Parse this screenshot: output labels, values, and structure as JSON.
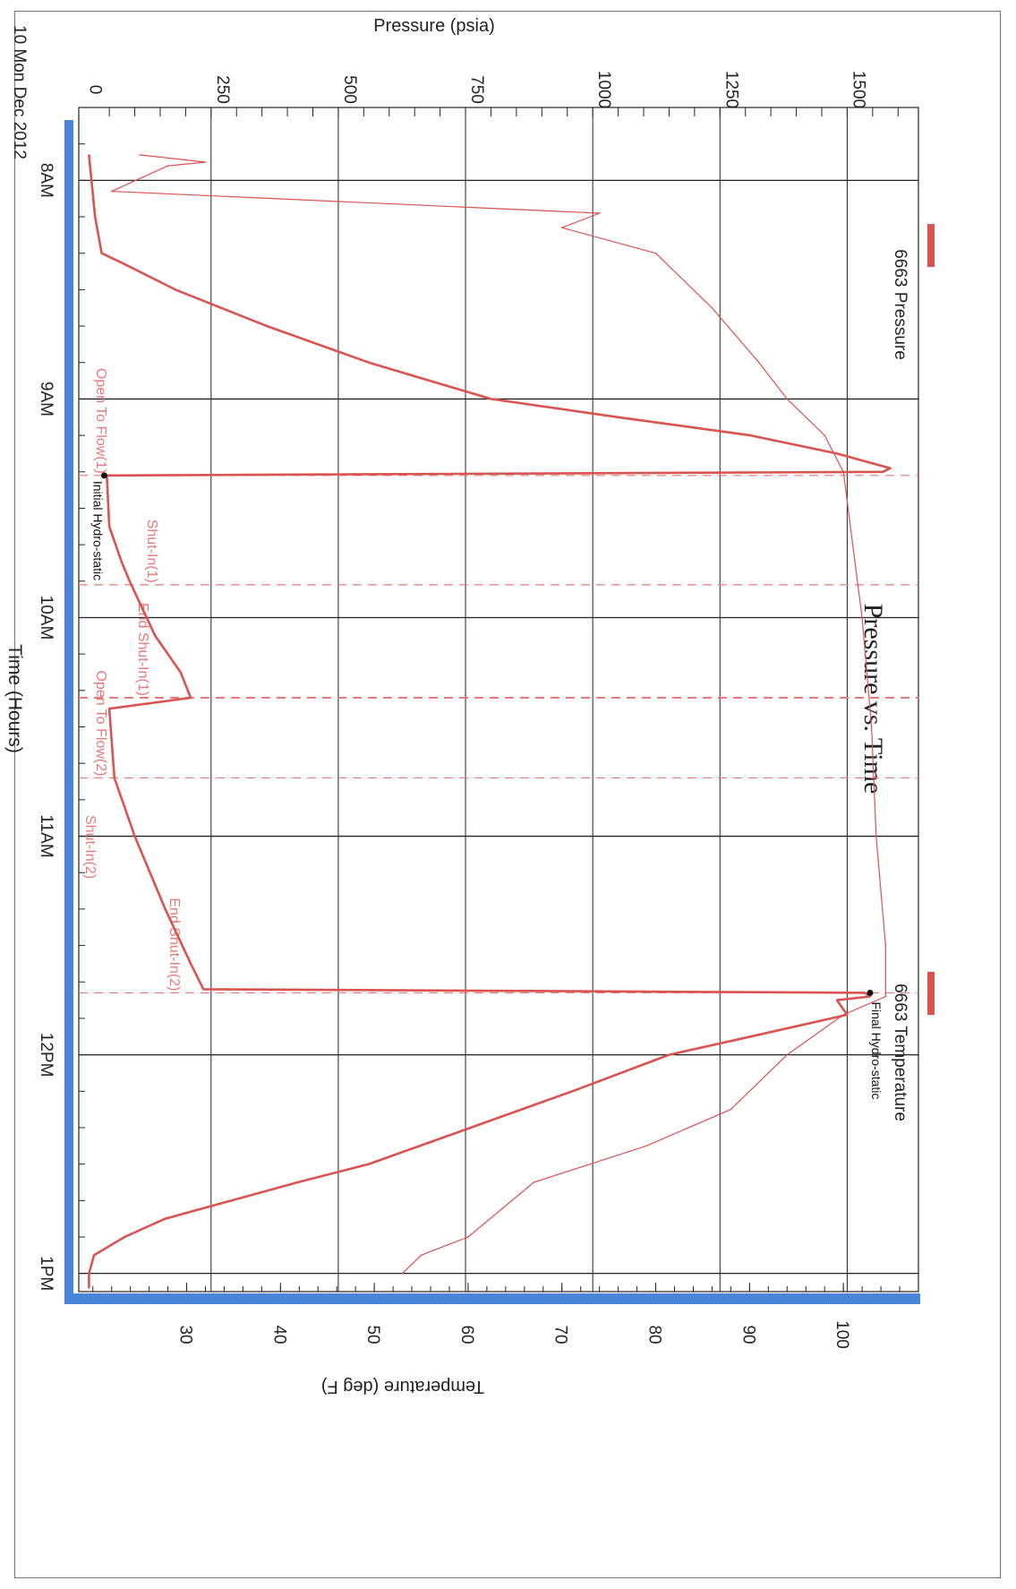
{
  "chart_data": {
    "type": "line",
    "orientation": "rotated 90 degrees clockwise (time runs top to bottom)",
    "title": "Pressure vs. Time",
    "date_label": "10 Mon Dec 2012",
    "xlabel": "Time (Hours)",
    "ylabel_left": "Pressure (psia)",
    "ylabel_right": "Temperature (deg F)",
    "x_ticks": [
      "8AM",
      "9AM",
      "10AM",
      "11AM",
      "12PM",
      "1PM"
    ],
    "x_range": [
      "7:40",
      "13:05"
    ],
    "pressure_ticks": [
      "0",
      "250",
      "500",
      "750",
      "1000",
      "1250",
      "1500"
    ],
    "pressure_range": [
      -10,
      1640
    ],
    "temperature_ticks": [
      "30",
      "40",
      "50",
      "60",
      "70",
      "80",
      "90",
      "100"
    ],
    "temperature_range": [
      18.5,
      108
    ],
    "grid": true,
    "legend": [
      {
        "name": "6663 Pressure",
        "color": "#d9534f"
      },
      {
        "name": "6663 Temperature",
        "color": "#d9534f"
      }
    ],
    "event_lines": [
      {
        "time": "9:21",
        "label": "Open To Flow(1)"
      },
      {
        "time": "9:51",
        "label": "Shut-In(1)"
      },
      {
        "time": "10:22",
        "label": "End Shut-In(1)"
      },
      {
        "time": "10:44",
        "label": "Open To Flow(2)"
      },
      {
        "time": "11:43",
        "label": "End Shut-In(2)"
      }
    ],
    "event_labels_extra": [
      {
        "label": "Shut-In(2)"
      }
    ],
    "point_annotations": [
      {
        "label": "Initial Hydro-static",
        "time": "9:21",
        "pressure": 40
      },
      {
        "label": "Final Hydro-static",
        "time": "11:43",
        "pressure": 1545
      }
    ],
    "series": [
      {
        "name": "6663 Pressure",
        "axis": "pressure",
        "points": [
          [
            "7:53",
            10
          ],
          [
            "8:00",
            15
          ],
          [
            "8:10",
            22
          ],
          [
            "8:20",
            35
          ],
          [
            "8:23",
            80
          ],
          [
            "8:30",
            180
          ],
          [
            "8:40",
            360
          ],
          [
            "8:50",
            560
          ],
          [
            "9:00",
            800
          ],
          [
            "9:05",
            1050
          ],
          [
            "9:10",
            1310
          ],
          [
            "9:15",
            1480
          ],
          [
            "9:19",
            1585
          ],
          [
            "9:20",
            1570
          ],
          [
            "9:21",
            45
          ],
          [
            "9:35",
            50
          ],
          [
            "9:45",
            75
          ],
          [
            "9:50",
            90
          ],
          [
            "10:05",
            140
          ],
          [
            "10:15",
            190
          ],
          [
            "10:22",
            210
          ],
          [
            "10:25",
            50
          ],
          [
            "10:44",
            60
          ],
          [
            "11:00",
            100
          ],
          [
            "11:20",
            160
          ],
          [
            "11:35",
            210
          ],
          [
            "11:42",
            235
          ],
          [
            "11:43",
            1535
          ],
          [
            "11:44",
            1545
          ],
          [
            "11:45",
            1480
          ],
          [
            "11:49",
            1500
          ],
          [
            "11:55",
            1310
          ],
          [
            "12:00",
            1150
          ],
          [
            "12:10",
            960
          ],
          [
            "12:20",
            760
          ],
          [
            "12:30",
            560
          ],
          [
            "12:35",
            420
          ],
          [
            "12:45",
            160
          ],
          [
            "12:50",
            80
          ],
          [
            "12:55",
            20
          ],
          [
            "13:00",
            10
          ],
          [
            "13:04",
            10
          ]
        ]
      },
      {
        "name": "6663 Temperature",
        "axis": "temperature",
        "points": [
          [
            "7:53",
            25
          ],
          [
            "7:55",
            32
          ],
          [
            "7:56",
            28
          ],
          [
            "8:03",
            22
          ],
          [
            "8:09",
            74
          ],
          [
            "8:13",
            70
          ],
          [
            "8:20",
            80
          ],
          [
            "8:35",
            86
          ],
          [
            "8:50",
            91
          ],
          [
            "9:00",
            94
          ],
          [
            "9:10",
            98
          ],
          [
            "9:20",
            100
          ],
          [
            "9:40",
            101
          ],
          [
            "10:00",
            102
          ],
          [
            "10:30",
            103
          ],
          [
            "11:00",
            103.5
          ],
          [
            "11:30",
            104.5
          ],
          [
            "11:44",
            104.5
          ],
          [
            "11:49",
            100
          ],
          [
            "12:00",
            94
          ],
          [
            "12:15",
            88
          ],
          [
            "12:25",
            79
          ],
          [
            "12:35",
            67
          ],
          [
            "12:50",
            60
          ],
          [
            "12:55",
            55
          ],
          [
            "13:00",
            53
          ]
        ]
      }
    ]
  },
  "colors": {
    "series": "#d9534f",
    "event": "#e8787a",
    "axis_bar": "#4a86d8",
    "grid": "#222222",
    "text": "#222222"
  }
}
